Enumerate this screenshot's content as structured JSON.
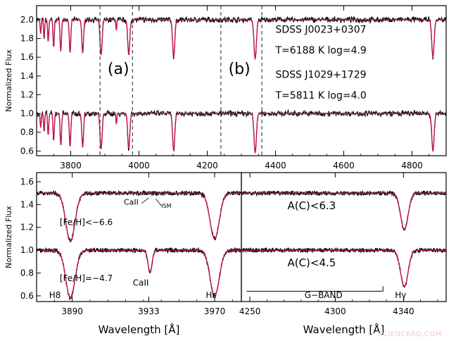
{
  "chart_data": [
    {
      "type": "line",
      "panel": "top",
      "ylabel": "Normalized Flux",
      "xlim": [
        3700,
        4900
      ],
      "ylim": [
        0.55,
        2.15
      ],
      "xticks": [
        3800,
        4000,
        4200,
        4400,
        4600,
        4800
      ],
      "yticks": [
        0.6,
        0.8,
        1.0,
        1.2,
        1.4,
        1.6,
        1.8,
        2.0
      ],
      "ytick_labels": [
        "0.6",
        "0.8",
        "1.0",
        "1.2",
        "1.4",
        "1.6",
        "1.8",
        "2.0"
      ],
      "series": [
        {
          "key": "observed",
          "color": "#000000",
          "offsets": [
            2.0,
            1.0
          ]
        },
        {
          "key": "model",
          "color": "#c0174a",
          "offsets": [
            2.0,
            1.0
          ]
        }
      ],
      "absorption_lines": [
        {
          "x": 3712,
          "depth": 0.15,
          "width": 1.5
        },
        {
          "x": 3722,
          "depth": 0.2,
          "width": 1.5
        },
        {
          "x": 3734,
          "depth": 0.24,
          "width": 1.6
        },
        {
          "x": 3750,
          "depth": 0.3,
          "width": 1.8
        },
        {
          "x": 3771,
          "depth": 0.34,
          "width": 2.0
        },
        {
          "x": 3798,
          "depth": 0.36,
          "width": 2.2
        },
        {
          "x": 3835,
          "depth": 0.36,
          "width": 2.5
        },
        {
          "x": 3889,
          "depth": 0.38,
          "width": 3.0
        },
        {
          "x": 3933.7,
          "depth": 0.12,
          "width": 1.2
        },
        {
          "x": 3970,
          "depth": 0.38,
          "width": 3.0
        },
        {
          "x": 4101.7,
          "depth": 0.4,
          "width": 3.2
        },
        {
          "x": 4340.5,
          "depth": 0.42,
          "width": 3.5
        },
        {
          "x": 4861.3,
          "depth": 0.4,
          "width": 3.5
        }
      ],
      "vlines": [
        3886,
        3981,
        4240,
        4360
      ],
      "annotations": [
        {
          "key": "label_a",
          "text": "(a)",
          "x": 3908,
          "y": 1.42
        },
        {
          "key": "label_b",
          "text": "(b)",
          "x": 4262,
          "y": 1.42
        },
        {
          "key": "star1",
          "text": "SDSS J0023+0307",
          "x": 4400,
          "y": 1.86
        },
        {
          "key": "star1_params",
          "text": "T=6188 K   log=4.9",
          "x": 4400,
          "y": 1.64
        },
        {
          "key": "star2",
          "text": "SDSS J1029+1729",
          "x": 4400,
          "y": 1.38
        },
        {
          "key": "star2_params",
          "text": "T=5811 K   log=4.0",
          "x": 4400,
          "y": 1.16
        }
      ]
    },
    {
      "type": "line",
      "panel": "bottom-left",
      "ylabel": "Normalized Flux",
      "xlabel": "Wavelength [Å]",
      "xlim": [
        3870,
        3985
      ],
      "ylim": [
        0.55,
        1.68
      ],
      "xticks": [
        3890,
        3933,
        3970
      ],
      "xtick_labels": [
        "3890",
        "3933",
        "3970"
      ],
      "yticks": [
        0.6,
        0.8,
        1.0,
        1.2,
        1.4,
        1.6
      ],
      "ytick_labels": [
        "0.6",
        "0.8",
        "1.0",
        "1.2",
        "1.4",
        "1.6"
      ],
      "series": [
        {
          "key": "observed",
          "color": "#000000",
          "offsets": [
            1.5,
            1.0
          ]
        },
        {
          "key": "model",
          "color": "#c0174a",
          "offsets": [
            1.5,
            1.0
          ]
        }
      ],
      "absorption_lines": [
        {
          "x": 3889,
          "depth": 0.42,
          "width": 2.6
        },
        {
          "x": 3933.7,
          "depth": 0.2,
          "width": 1.1,
          "only_offset": 1.0
        },
        {
          "x": 3970,
          "depth": 0.4,
          "width": 2.6
        }
      ],
      "annotations": [
        {
          "key": "call_ism",
          "text": "CaII",
          "x": 3919,
          "y": 1.4
        },
        {
          "key": "ism",
          "text": "ISM",
          "x": 3940,
          "y": 1.37
        },
        {
          "key": "fe1",
          "text": "[Fe/H]<−6.6",
          "x": 3883,
          "y": 1.22
        },
        {
          "key": "fe2",
          "text": "[Fe/H]=−4.7",
          "x": 3883,
          "y": 0.73
        },
        {
          "key": "call",
          "text": "CaII",
          "x": 3924,
          "y": 0.69
        },
        {
          "key": "h8",
          "text": "H8",
          "x": 3877,
          "y": 0.58
        },
        {
          "key": "he",
          "text": "Hε",
          "x": 3965,
          "y": 0.58
        }
      ]
    },
    {
      "type": "line",
      "panel": "bottom-right",
      "xlabel": "Wavelength [Å]",
      "xlim": [
        4245,
        4365
      ],
      "ylim": [
        0.55,
        1.68
      ],
      "xticks": [
        4250,
        4300,
        4340
      ],
      "xtick_labels": [
        "4250",
        "4300",
        "4340"
      ],
      "series": [
        {
          "key": "observed",
          "color": "#000000",
          "offsets": [
            1.5,
            1.0
          ]
        },
        {
          "key": "model",
          "color": "#c0174a",
          "offsets": [
            1.5,
            1.0
          ]
        }
      ],
      "absorption_lines": [
        {
          "x": 4340.5,
          "depth": 0.32,
          "width": 2.2
        }
      ],
      "gband": {
        "x_start": 4248,
        "x_end": 4328,
        "y": 0.64
      },
      "annotations": [
        {
          "key": "ac1",
          "text": "A(C)<6.3",
          "x": 4272,
          "y": 1.36
        },
        {
          "key": "ac2",
          "text": "A(C)<4.5",
          "x": 4272,
          "y": 0.86
        },
        {
          "key": "gband_label",
          "text": "G−BAND",
          "x": 4282,
          "y": 0.58
        },
        {
          "key": "hg",
          "text": "Hγ",
          "x": 4335,
          "y": 0.58
        }
      ]
    }
  ],
  "watermark": "SCIENCEAQ.COM"
}
